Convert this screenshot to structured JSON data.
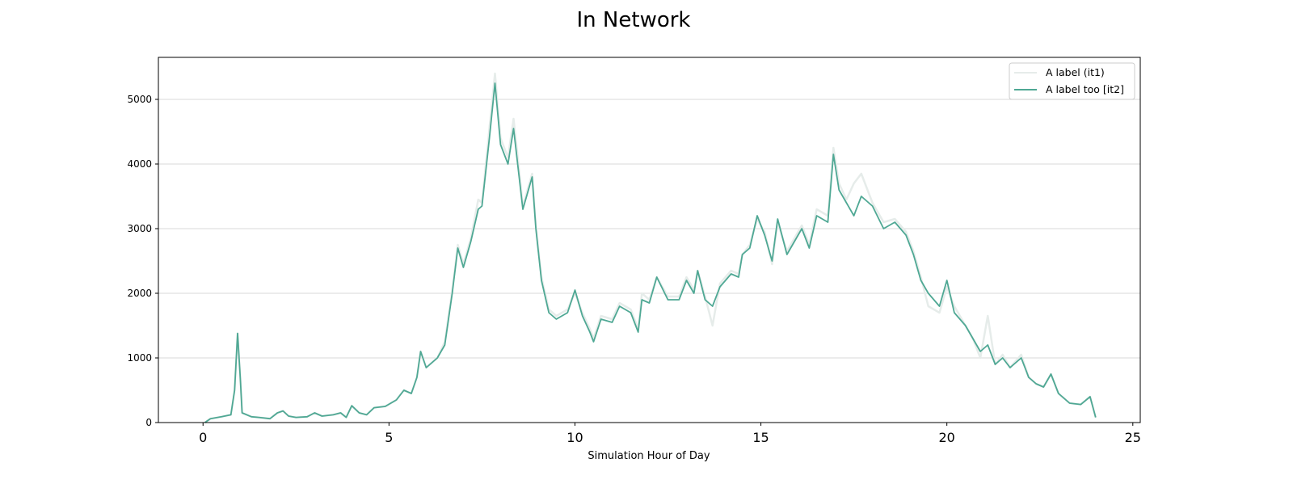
{
  "chart_data": {
    "type": "line",
    "title": "In Network",
    "xlabel": "Simulation Hour of Day",
    "ylabel": "",
    "xlim": [
      -1.2,
      25.2
    ],
    "ylim": [
      0,
      5650
    ],
    "xticks": [
      0,
      5,
      10,
      15,
      20,
      25
    ],
    "yticks": [
      0,
      1000,
      2000,
      3000,
      4000,
      5000
    ],
    "grid": "horizontal",
    "legend": "top-right",
    "x": [
      0.05,
      0.2,
      0.5,
      0.75,
      0.85,
      0.93,
      1.0,
      1.05,
      1.3,
      1.5,
      1.8,
      2.0,
      2.15,
      2.3,
      2.5,
      2.8,
      3.0,
      3.2,
      3.5,
      3.7,
      3.85,
      4.0,
      4.2,
      4.4,
      4.6,
      4.9,
      5.2,
      5.4,
      5.6,
      5.75,
      5.85,
      6.0,
      6.3,
      6.5,
      6.6,
      6.7,
      6.85,
      7.0,
      7.2,
      7.4,
      7.5,
      7.7,
      7.85,
      8.0,
      8.2,
      8.35,
      8.5,
      8.6,
      8.75,
      8.85,
      8.95,
      9.1,
      9.3,
      9.5,
      9.8,
      10.0,
      10.2,
      10.4,
      10.5,
      10.7,
      11.0,
      11.2,
      11.5,
      11.7,
      11.8,
      12.0,
      12.2,
      12.5,
      12.8,
      13.0,
      13.2,
      13.3,
      13.5,
      13.7,
      13.9,
      14.2,
      14.4,
      14.5,
      14.7,
      14.9,
      15.1,
      15.3,
      15.45,
      15.7,
      15.9,
      16.1,
      16.3,
      16.5,
      16.8,
      16.95,
      17.1,
      17.3,
      17.5,
      17.7,
      18.0,
      18.3,
      18.6,
      18.9,
      19.1,
      19.3,
      19.5,
      19.8,
      20.0,
      20.2,
      20.5,
      20.7,
      20.9,
      21.1,
      21.3,
      21.5,
      21.7,
      22.0,
      22.2,
      22.4,
      22.6,
      22.8,
      23.0,
      23.3,
      23.6,
      23.85,
      24.0
    ],
    "series": [
      {
        "name": "A label (it1)",
        "color": "#e6ecea",
        "values": [
          0,
          60,
          90,
          120,
          500,
          1380,
          700,
          150,
          90,
          80,
          60,
          150,
          180,
          100,
          80,
          90,
          150,
          100,
          120,
          150,
          80,
          260,
          150,
          120,
          230,
          250,
          350,
          500,
          450,
          700,
          1100,
          850,
          1000,
          1250,
          1650,
          2050,
          2750,
          2450,
          2850,
          3450,
          3400,
          4550,
          5400,
          4400,
          4100,
          4700,
          3900,
          3350,
          3650,
          3850,
          3050,
          2250,
          1750,
          1650,
          1750,
          2000,
          1700,
          1450,
          1300,
          1650,
          1600,
          1850,
          1750,
          1450,
          2000,
          1900,
          2250,
          1950,
          1950,
          2250,
          2050,
          2350,
          1950,
          1500,
          2150,
          2350,
          2300,
          2600,
          2750,
          3150,
          2950,
          2450,
          3100,
          2650,
          2850,
          3050,
          2750,
          3300,
          3200,
          4250,
          3700,
          3450,
          3700,
          3850,
          3400,
          3100,
          3150,
          2950,
          2650,
          2250,
          1800,
          1700,
          2100,
          1800,
          1500,
          1300,
          1000,
          1650,
          900,
          1050,
          850,
          1050,
          700,
          600,
          550,
          750,
          450,
          300,
          280,
          400,
          80
        ]
      },
      {
        "name": "A label too [it2]",
        "color": "#4fa894",
        "values": [
          0,
          60,
          90,
          120,
          500,
          1380,
          700,
          150,
          90,
          80,
          60,
          150,
          180,
          100,
          80,
          90,
          150,
          100,
          120,
          150,
          80,
          260,
          150,
          120,
          230,
          250,
          350,
          500,
          450,
          700,
          1100,
          850,
          1000,
          1200,
          1600,
          2000,
          2700,
          2400,
          2800,
          3300,
          3350,
          4400,
          5250,
          4300,
          4000,
          4550,
          3800,
          3300,
          3600,
          3800,
          3000,
          2200,
          1700,
          1600,
          1700,
          2050,
          1650,
          1400,
          1250,
          1600,
          1550,
          1800,
          1700,
          1400,
          1900,
          1850,
          2250,
          1900,
          1900,
          2200,
          2000,
          2350,
          1900,
          1800,
          2100,
          2300,
          2250,
          2600,
          2700,
          3200,
          2900,
          2500,
          3150,
          2600,
          2800,
          3000,
          2700,
          3200,
          3100,
          4150,
          3600,
          3400,
          3200,
          3500,
          3350,
          3000,
          3100,
          2900,
          2600,
          2200,
          2000,
          1800,
          2200,
          1700,
          1500,
          1300,
          1100,
          1200,
          900,
          1000,
          850,
          1000,
          700,
          600,
          550,
          750,
          450,
          300,
          280,
          400,
          80
        ]
      }
    ]
  }
}
